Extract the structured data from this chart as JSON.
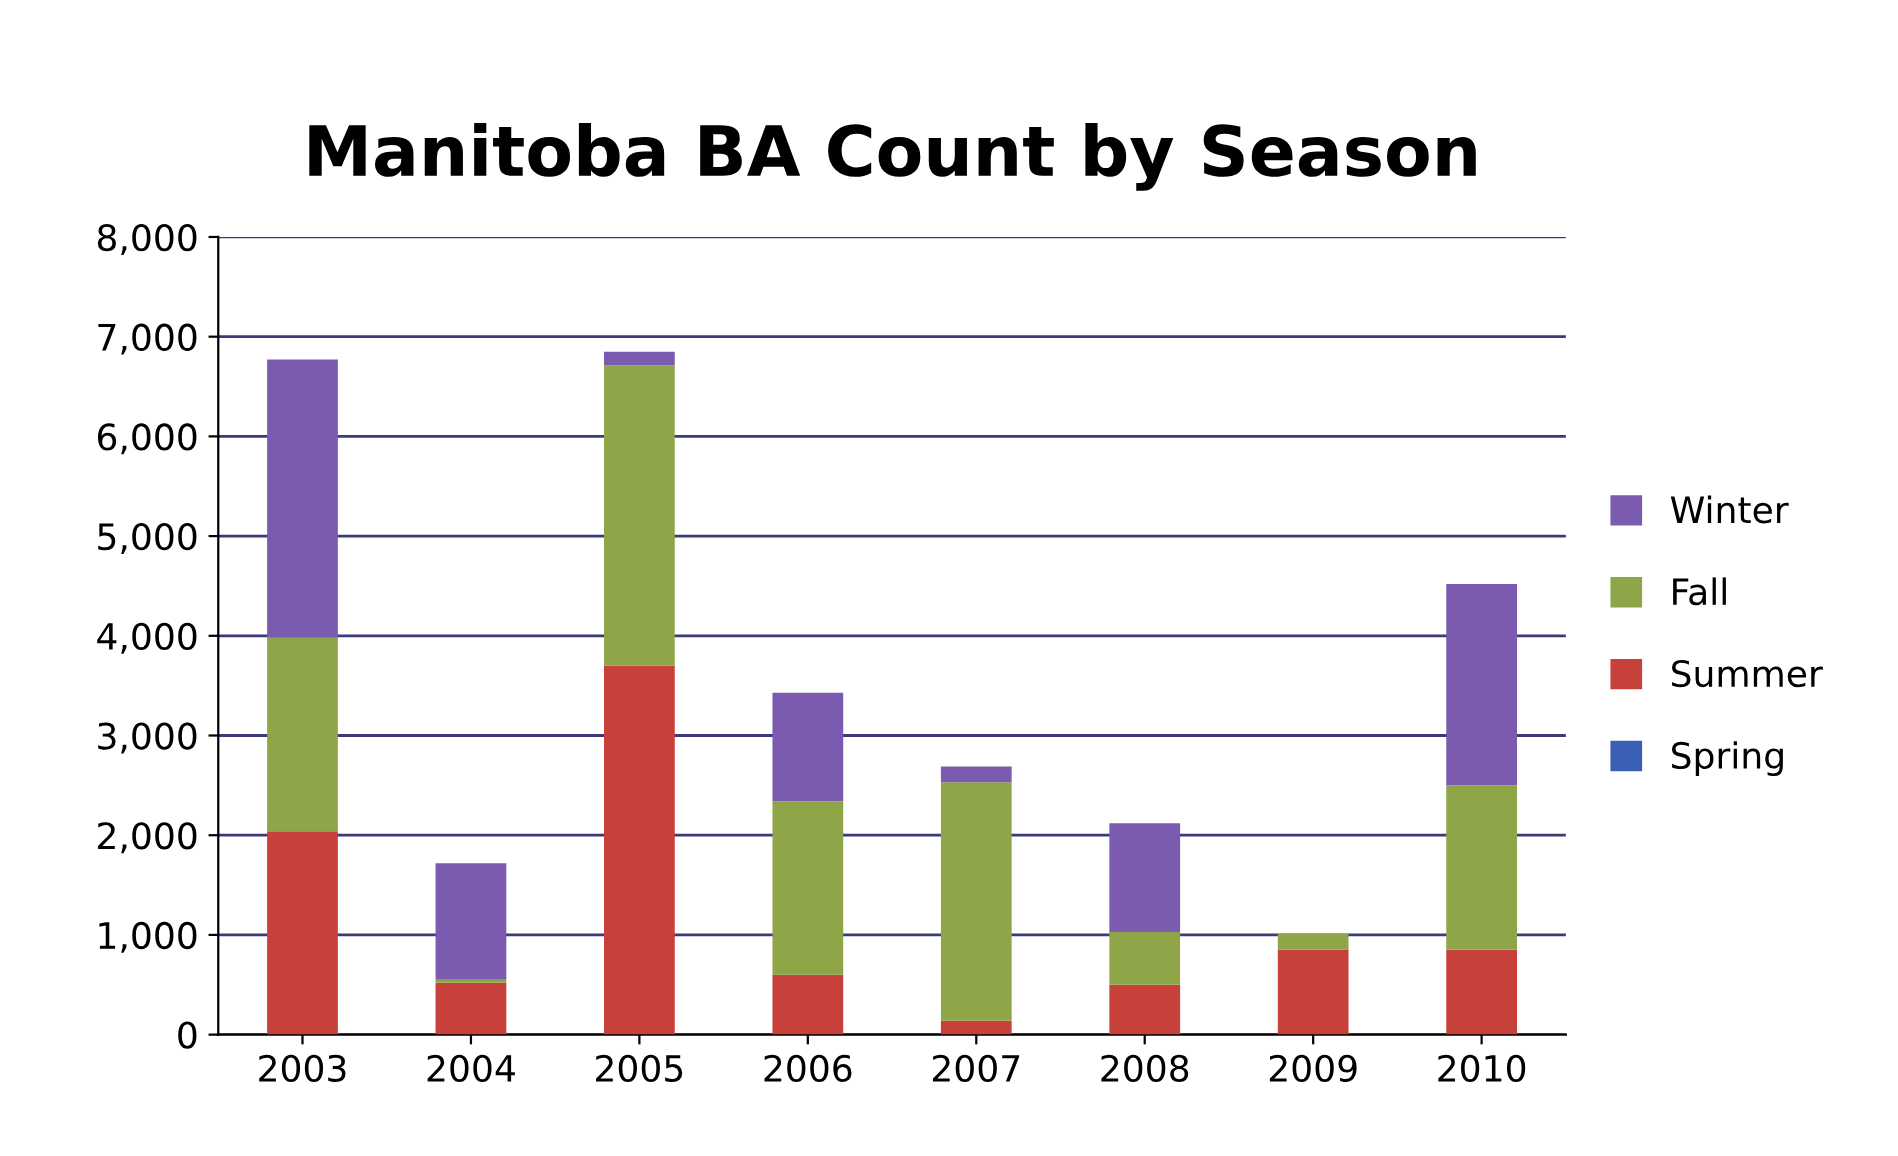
{
  "chart_data": {
    "type": "bar",
    "title": "Manitoba BA Count by Season",
    "stacked": true,
    "categories": [
      "2003",
      "2004",
      "2005",
      "2006",
      "2007",
      "2008",
      "2009",
      "2010"
    ],
    "series": [
      {
        "name": "Spring",
        "color": "#3a5fb5",
        "values": [
          0,
          0,
          0,
          0,
          0,
          0,
          0,
          0
        ]
      },
      {
        "name": "Summer",
        "color": "#c8403a",
        "values": [
          2040,
          520,
          3700,
          600,
          140,
          500,
          850,
          850
        ]
      },
      {
        "name": "Fall",
        "color": "#8ea548",
        "values": [
          1940,
          30,
          3010,
          1740,
          2390,
          530,
          160,
          1650
        ]
      },
      {
        "name": "Winter",
        "color": "#7b5bb0",
        "values": [
          2790,
          1170,
          140,
          1090,
          160,
          1090,
          0,
          2020
        ]
      }
    ],
    "ylim": [
      0,
      8000
    ],
    "yticks": [
      {
        "value": 0,
        "label": "0"
      },
      {
        "value": 1000,
        "label": "1,000"
      },
      {
        "value": 2000,
        "label": "2,000"
      },
      {
        "value": 3000,
        "label": "3,000"
      },
      {
        "value": 4000,
        "label": "4,000"
      },
      {
        "value": 5000,
        "label": "5,000"
      },
      {
        "value": 6000,
        "label": "6,000"
      },
      {
        "value": 7000,
        "label": "7,000"
      },
      {
        "value": 8000,
        "label": "8,000"
      }
    ],
    "grid": "y",
    "legend": "right"
  }
}
